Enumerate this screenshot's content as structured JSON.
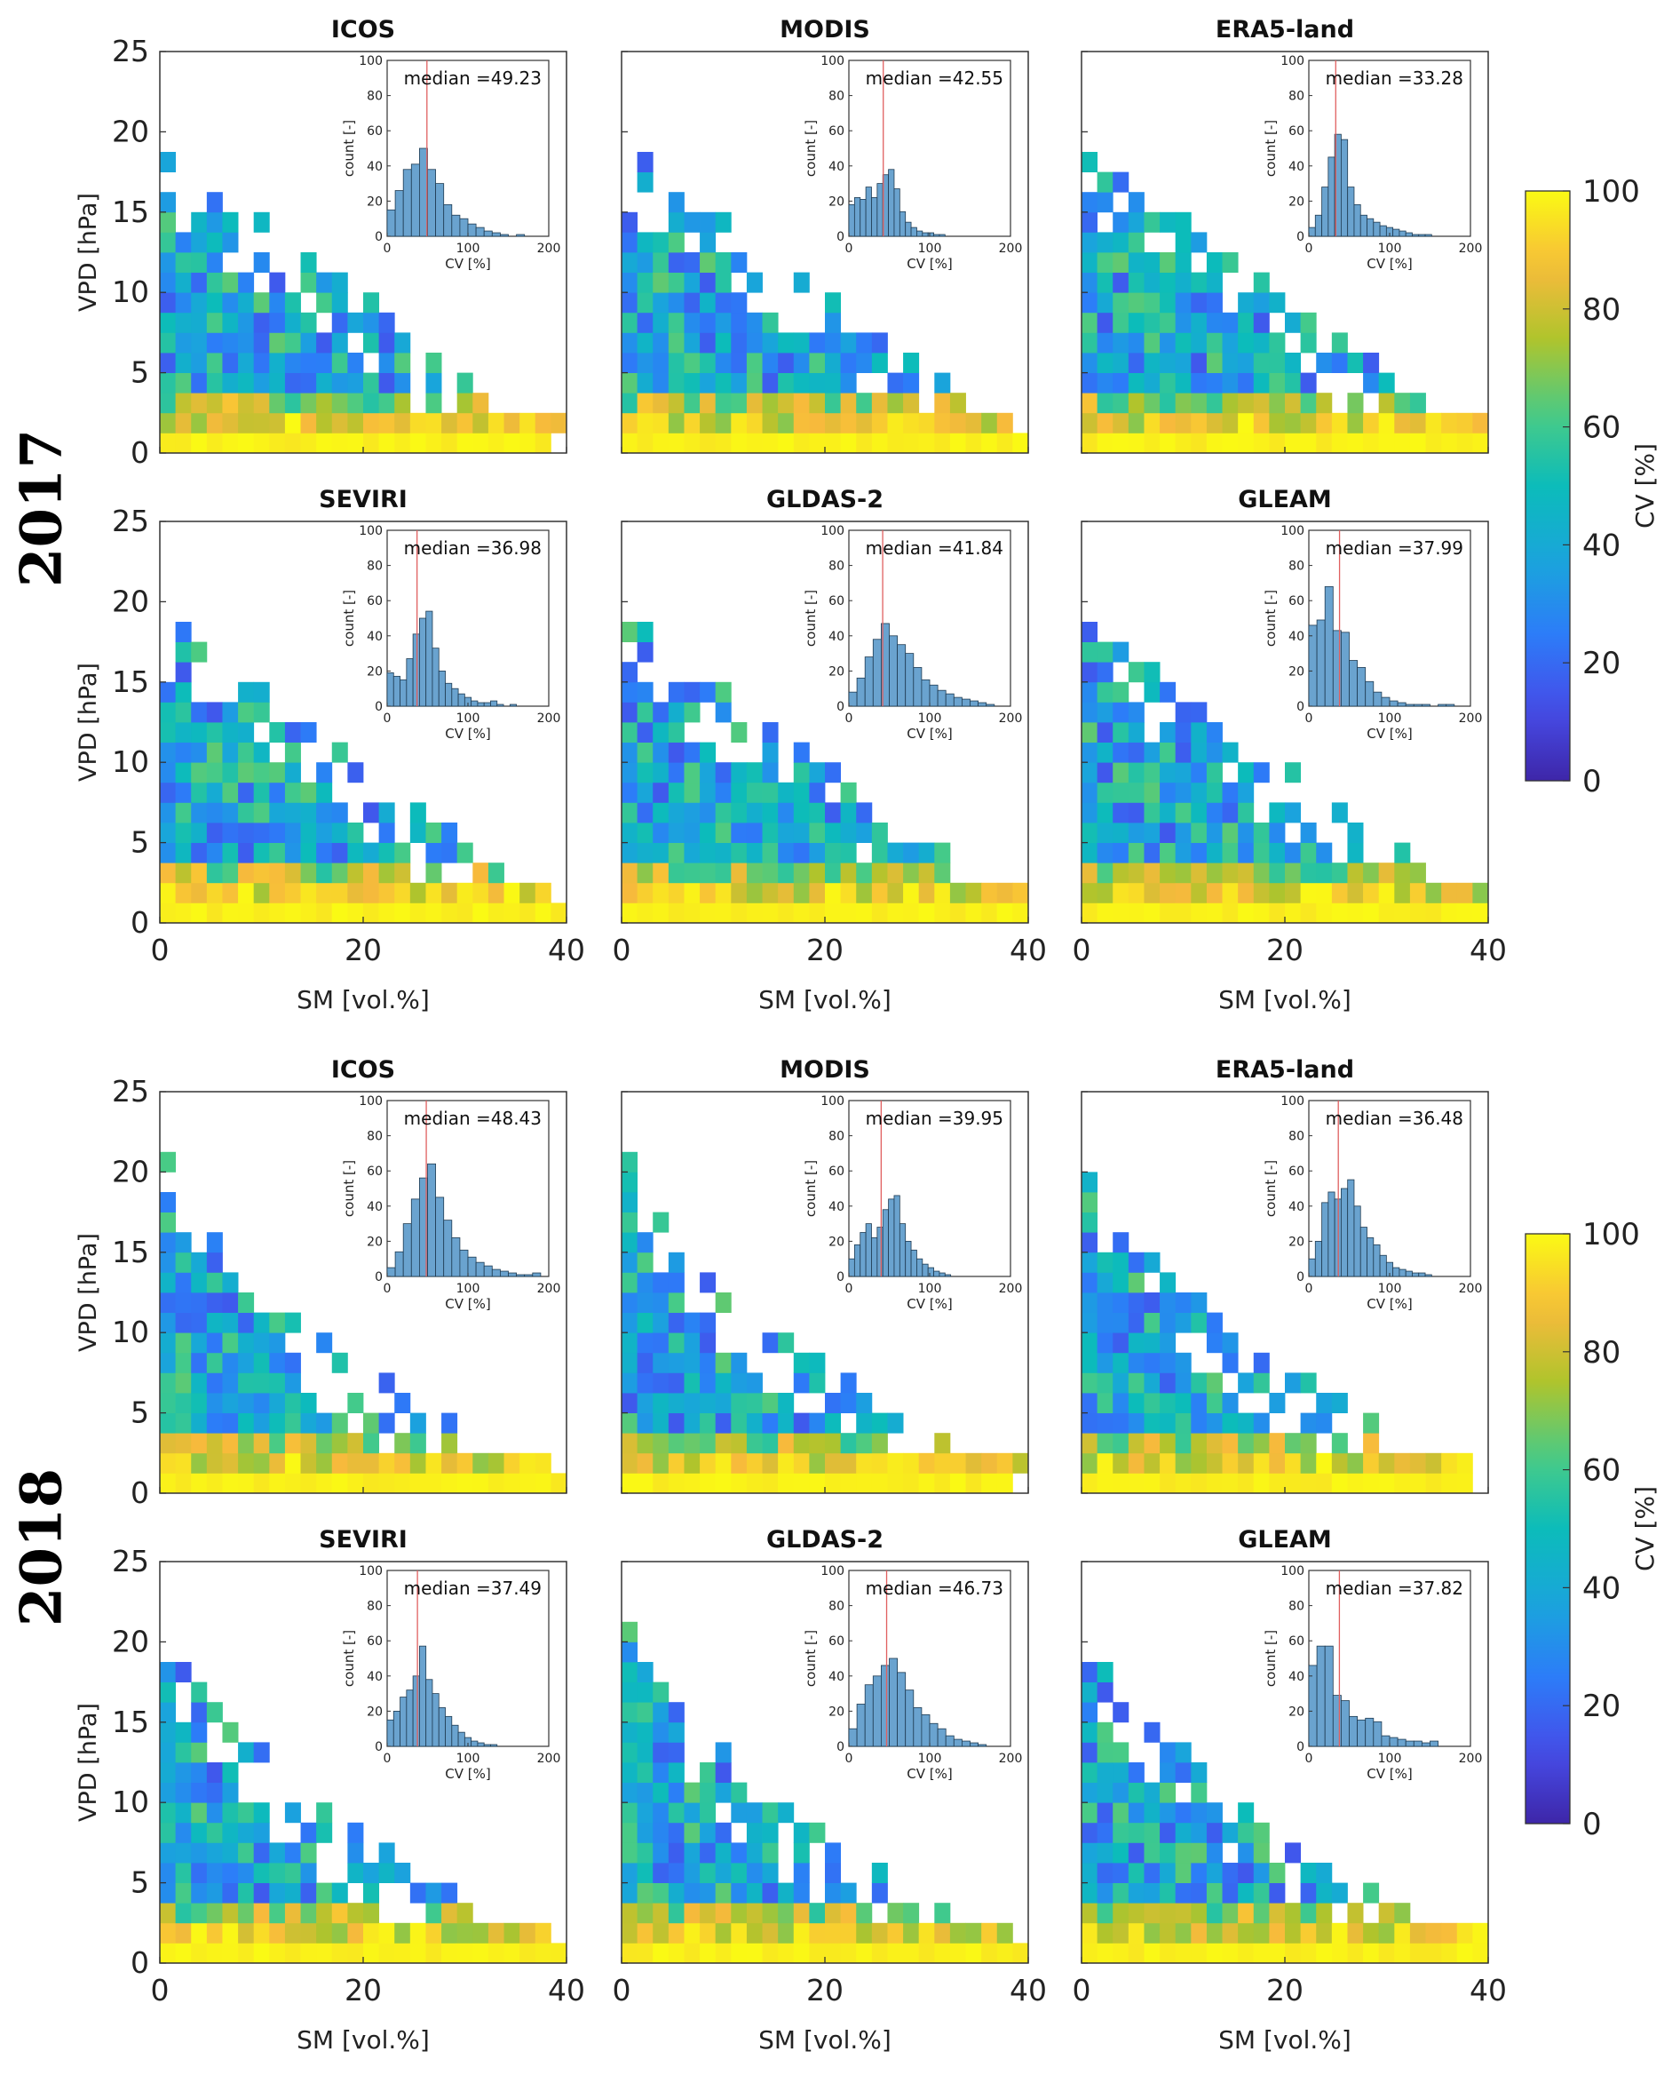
{
  "figure": {
    "colorbar_label": "CV [%]",
    "colorbar_ticks": [
      "0",
      "20",
      "40",
      "60",
      "80",
      "100"
    ],
    "x_ticks": [
      "0",
      "20",
      "40"
    ],
    "y_ticks": [
      "0",
      "5",
      "10",
      "15",
      "20",
      "25"
    ],
    "inset_x_ticks": [
      "0",
      "100",
      "200"
    ],
    "inset_y_ticks": [
      "0",
      "20",
      "40",
      "60",
      "80",
      "100"
    ]
  },
  "chart_data": [
    {
      "type": "heatmap",
      "year": "2017",
      "title": "ICOS",
      "xlabel": "SM [vol.%]",
      "ylabel": "VPD [hPa]",
      "xlim": [
        0,
        40
      ],
      "ylim": [
        0,
        25
      ],
      "clim": [
        0,
        100
      ],
      "inset": {
        "type": "histogram",
        "xlabel": "CV [%]",
        "ylabel": "count [-]",
        "xlim": [
          0,
          200
        ],
        "ylim": [
          0,
          100
        ],
        "median_label": "median =49.23",
        "median": 49.23,
        "bin_width": 10,
        "counts": [
          15,
          26,
          38,
          41,
          50,
          38,
          30,
          18,
          12,
          10,
          7,
          5,
          3,
          2,
          1,
          0,
          1,
          0,
          0,
          0
        ]
      }
    },
    {
      "type": "heatmap",
      "year": "2017",
      "title": "MODIS",
      "xlabel": "SM [vol.%]",
      "ylabel": "VPD [hPa]",
      "xlim": [
        0,
        40
      ],
      "ylim": [
        0,
        25
      ],
      "clim": [
        0,
        100
      ],
      "inset": {
        "type": "histogram",
        "xlabel": "CV [%]",
        "ylabel": "count [-]",
        "xlim": [
          0,
          200
        ],
        "ylim": [
          0,
          100
        ],
        "median_label": "median =42.55",
        "median": 42.55,
        "bin_width": 7,
        "counts": [
          18,
          22,
          21,
          28,
          22,
          30,
          35,
          38,
          27,
          14,
          8,
          5,
          3,
          2,
          2,
          1,
          1
        ]
      }
    },
    {
      "type": "heatmap",
      "year": "2017",
      "title": "ERA5-land",
      "xlabel": "SM [vol.%]",
      "ylabel": "VPD [hPa]",
      "xlim": [
        0,
        40
      ],
      "ylim": [
        0,
        25
      ],
      "clim": [
        0,
        100
      ],
      "inset": {
        "type": "histogram",
        "xlabel": "CV [%]",
        "ylabel": "count [-]",
        "xlim": [
          0,
          200
        ],
        "ylim": [
          0,
          100
        ],
        "median_label": "median =33.28",
        "median": 33.28,
        "bin_width": 8,
        "counts": [
          5,
          12,
          28,
          45,
          58,
          55,
          28,
          18,
          12,
          10,
          8,
          6,
          5,
          4,
          3,
          2,
          1,
          1,
          1
        ]
      }
    },
    {
      "type": "heatmap",
      "year": "2017",
      "title": "SEVIRI",
      "xlabel": "SM [vol.%]",
      "ylabel": "VPD [hPa]",
      "xlim": [
        0,
        40
      ],
      "ylim": [
        0,
        25
      ],
      "clim": [
        0,
        100
      ],
      "inset": {
        "type": "histogram",
        "xlabel": "CV [%]",
        "ylabel": "count [-]",
        "xlim": [
          0,
          200
        ],
        "ylim": [
          0,
          100
        ],
        "median_label": "median =36.98",
        "median": 36.98,
        "bin_width": 8,
        "counts": [
          19,
          17,
          15,
          27,
          41,
          50,
          54,
          33,
          20,
          13,
          10,
          7,
          5,
          3,
          2,
          2,
          3,
          1,
          0,
          1
        ]
      }
    },
    {
      "type": "heatmap",
      "year": "2017",
      "title": "GLDAS-2",
      "xlabel": "SM [vol.%]",
      "ylabel": "VPD [hPa]",
      "xlim": [
        0,
        40
      ],
      "ylim": [
        0,
        25
      ],
      "clim": [
        0,
        100
      ],
      "inset": {
        "type": "histogram",
        "xlabel": "CV [%]",
        "ylabel": "count [-]",
        "xlim": [
          0,
          200
        ],
        "ylim": [
          0,
          100
        ],
        "median_label": "median =41.84",
        "median": 41.84,
        "bin_width": 10,
        "counts": [
          8,
          16,
          28,
          38,
          47,
          40,
          35,
          30,
          22,
          15,
          12,
          9,
          7,
          5,
          4,
          3,
          2,
          1
        ]
      }
    },
    {
      "type": "heatmap",
      "year": "2017",
      "title": "GLEAM",
      "xlabel": "SM [vol.%]",
      "ylabel": "VPD [hPa]",
      "xlim": [
        0,
        40
      ],
      "ylim": [
        0,
        25
      ],
      "clim": [
        0,
        100
      ],
      "inset": {
        "type": "histogram",
        "xlabel": "CV [%]",
        "ylabel": "count [-]",
        "xlim": [
          0,
          200
        ],
        "ylim": [
          0,
          100
        ],
        "median_label": "median =37.99",
        "median": 37.99,
        "bin_width": 10,
        "counts": [
          46,
          49,
          68,
          43,
          42,
          26,
          22,
          14,
          8,
          5,
          3,
          2,
          1,
          1,
          1,
          0,
          1,
          1
        ]
      }
    },
    {
      "type": "heatmap",
      "year": "2018",
      "title": "ICOS",
      "xlabel": "SM [vol.%]",
      "ylabel": "VPD [hPa]",
      "xlim": [
        0,
        40
      ],
      "ylim": [
        0,
        25
      ],
      "clim": [
        0,
        100
      ],
      "inset": {
        "type": "histogram",
        "xlabel": "CV [%]",
        "ylabel": "count [-]",
        "xlim": [
          0,
          200
        ],
        "ylim": [
          0,
          100
        ],
        "median_label": "median =48.43",
        "median": 48.43,
        "bin_width": 10,
        "counts": [
          5,
          14,
          30,
          44,
          56,
          64,
          45,
          32,
          22,
          15,
          11,
          8,
          6,
          4,
          3,
          2,
          1,
          1,
          2
        ]
      }
    },
    {
      "type": "heatmap",
      "year": "2018",
      "title": "MODIS",
      "xlabel": "SM [vol.%]",
      "ylabel": "VPD [hPa]",
      "xlim": [
        0,
        40
      ],
      "ylim": [
        0,
        25
      ],
      "clim": [
        0,
        100
      ],
      "inset": {
        "type": "histogram",
        "xlabel": "CV [%]",
        "ylabel": "count [-]",
        "xlim": [
          0,
          200
        ],
        "ylim": [
          0,
          100
        ],
        "median_label": "median =39.95",
        "median": 39.95,
        "bin_width": 7,
        "counts": [
          10,
          18,
          25,
          30,
          22,
          28,
          38,
          44,
          46,
          30,
          20,
          15,
          10,
          7,
          5,
          3,
          2,
          1
        ]
      }
    },
    {
      "type": "heatmap",
      "year": "2018",
      "title": "ERA5-land",
      "xlabel": "SM [vol.%]",
      "ylabel": "VPD [hPa]",
      "xlim": [
        0,
        40
      ],
      "ylim": [
        0,
        25
      ],
      "clim": [
        0,
        100
      ],
      "inset": {
        "type": "histogram",
        "xlabel": "CV [%]",
        "ylabel": "count [-]",
        "xlim": [
          0,
          200
        ],
        "ylim": [
          0,
          100
        ],
        "median_label": "median =36.48",
        "median": 36.48,
        "bin_width": 8,
        "counts": [
          10,
          20,
          42,
          48,
          44,
          50,
          55,
          40,
          28,
          22,
          18,
          12,
          8,
          5,
          4,
          3,
          2,
          2,
          1
        ]
      }
    },
    {
      "type": "heatmap",
      "year": "2018",
      "title": "SEVIRI",
      "xlabel": "SM [vol.%]",
      "ylabel": "VPD [hPa]",
      "xlim": [
        0,
        40
      ],
      "ylim": [
        0,
        25
      ],
      "clim": [
        0,
        100
      ],
      "inset": {
        "type": "histogram",
        "xlabel": "CV [%]",
        "ylabel": "count [-]",
        "xlim": [
          0,
          200
        ],
        "ylim": [
          0,
          100
        ],
        "median_label": "median =37.49",
        "median": 37.49,
        "bin_width": 8,
        "counts": [
          15,
          20,
          28,
          32,
          40,
          57,
          38,
          30,
          22,
          17,
          12,
          8,
          5,
          3,
          2,
          1,
          1
        ]
      }
    },
    {
      "type": "heatmap",
      "year": "2018",
      "title": "GLDAS-2",
      "xlabel": "SM [vol.%]",
      "ylabel": "VPD [hPa]",
      "xlim": [
        0,
        40
      ],
      "ylim": [
        0,
        25
      ],
      "clim": [
        0,
        100
      ],
      "inset": {
        "type": "histogram",
        "xlabel": "CV [%]",
        "ylabel": "count [-]",
        "xlim": [
          0,
          200
        ],
        "ylim": [
          0,
          100
        ],
        "median_label": "median =46.73",
        "median": 46.73,
        "bin_width": 10,
        "counts": [
          10,
          24,
          35,
          40,
          46,
          50,
          42,
          32,
          22,
          18,
          13,
          10,
          6,
          4,
          3,
          2,
          1
        ]
      }
    },
    {
      "type": "heatmap",
      "year": "2018",
      "title": "GLEAM",
      "xlabel": "SM [vol.%]",
      "ylabel": "VPD [hPa]",
      "xlim": [
        0,
        40
      ],
      "ylim": [
        0,
        25
      ],
      "clim": [
        0,
        100
      ],
      "inset": {
        "type": "histogram",
        "xlabel": "CV [%]",
        "ylabel": "count [-]",
        "xlim": [
          0,
          200
        ],
        "ylim": [
          0,
          100
        ],
        "median_label": "median =37.82",
        "median": 37.82,
        "bin_width": 10,
        "counts": [
          46,
          57,
          57,
          29,
          26,
          17,
          15,
          16,
          14,
          6,
          5,
          4,
          3,
          3,
          2,
          3
        ]
      }
    }
  ]
}
